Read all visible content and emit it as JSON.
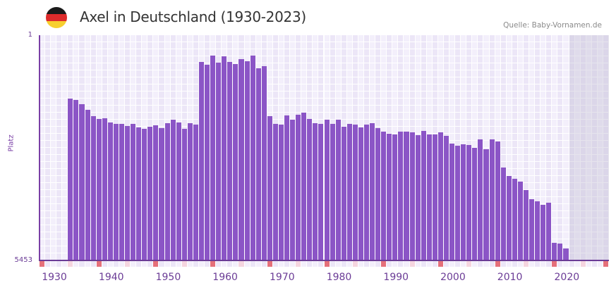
{
  "header": {
    "title": "Axel in Deutschland (1930-2023)",
    "source": "Quelle: Baby-Vornamen.de",
    "flag_colors": [
      "#1a1a1a",
      "#dd2b2b",
      "#f7cf2f"
    ]
  },
  "colors": {
    "bar": "#8b55c6",
    "axis": "#6b3c96",
    "grid_light": "#f3effb",
    "grid_dark": "#ece6f7",
    "decade_marker": "#e5707a",
    "half_decade_marker": "#f5d5df"
  },
  "chart_data": {
    "type": "bar",
    "title": "Axel in Deutschland (1930-2023)",
    "xlabel": "",
    "ylabel": "Platz",
    "y_inverted": true,
    "ylim": [
      1,
      5453
    ],
    "xlim": [
      1930,
      2029
    ],
    "x_ticks": [
      "1930",
      "1940",
      "1950",
      "1960",
      "1970",
      "1980",
      "1990",
      "2000",
      "2010",
      "2020"
    ],
    "y_ticks": [
      "1",
      "5453"
    ],
    "grid": true,
    "shaded_future_from": 2023,
    "categories": [
      1935,
      1936,
      1937,
      1938,
      1939,
      1940,
      1941,
      1942,
      1943,
      1944,
      1945,
      1946,
      1947,
      1948,
      1949,
      1950,
      1951,
      1952,
      1953,
      1954,
      1955,
      1956,
      1957,
      1958,
      1959,
      1960,
      1961,
      1962,
      1963,
      1964,
      1965,
      1966,
      1967,
      1968,
      1969,
      1970,
      1971,
      1972,
      1973,
      1974,
      1975,
      1976,
      1977,
      1978,
      1979,
      1980,
      1981,
      1982,
      1983,
      1984,
      1985,
      1986,
      1987,
      1988,
      1989,
      1990,
      1991,
      1992,
      1993,
      1994,
      1995,
      1996,
      1997,
      1998,
      1999,
      2000,
      2001,
      2002,
      2003,
      2004,
      2005,
      2006,
      2007,
      2008,
      2009,
      2010,
      2011,
      2012,
      2013,
      2014,
      2015,
      2016,
      2017,
      2018,
      2019,
      2020,
      2021,
      2022
    ],
    "values": [
      1534,
      1568,
      1670,
      1806,
      1960,
      2028,
      2011,
      2113,
      2147,
      2147,
      2198,
      2147,
      2232,
      2266,
      2215,
      2181,
      2249,
      2130,
      2045,
      2113,
      2266,
      2130,
      2164,
      647,
      715,
      494,
      664,
      511,
      647,
      698,
      579,
      630,
      494,
      800,
      749,
      1960,
      2147,
      2164,
      1943,
      2045,
      1926,
      1875,
      2028,
      2130,
      2147,
      2045,
      2147,
      2045,
      2215,
      2147,
      2164,
      2232,
      2164,
      2130,
      2249,
      2334,
      2385,
      2402,
      2334,
      2334,
      2351,
      2419,
      2317,
      2402,
      2402,
      2351,
      2436,
      2624,
      2675,
      2641,
      2658,
      2726,
      2521,
      2760,
      2521,
      2573,
      3203,
      3407,
      3476,
      3544,
      3748,
      3970,
      4021,
      4106,
      4055,
      5027,
      5044,
      5163
    ]
  }
}
